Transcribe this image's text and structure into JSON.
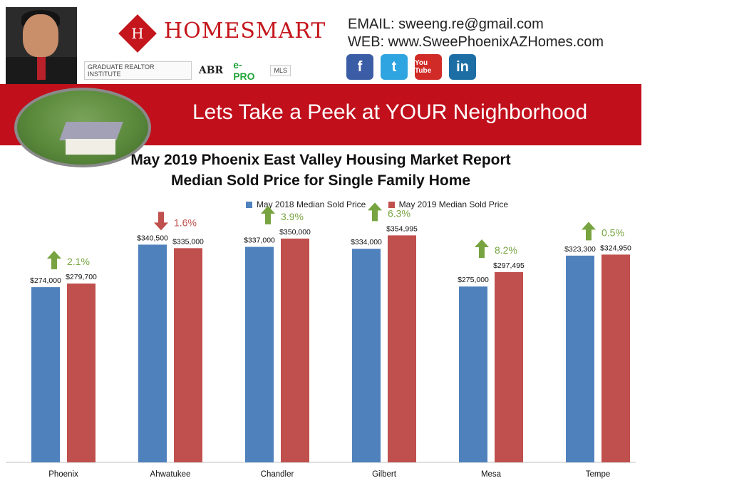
{
  "header": {
    "brand_name": "HOMESMART",
    "brand_glyph": "H",
    "badges": [
      "GRADUATE REALTOR INSTITUTE",
      "ABR",
      "e-PRO",
      "MLS"
    ],
    "email_line": "EMAIL: sweeng.re@gmail.com",
    "web_line": "WEB: www.SweePhoenixAZHomes.com",
    "social": [
      {
        "icon": "facebook-icon",
        "glyph": "f"
      },
      {
        "icon": "twitter-icon",
        "glyph": "t"
      },
      {
        "icon": "youtube-icon",
        "glyph": "You Tube"
      },
      {
        "icon": "linkedin-icon",
        "glyph": "in"
      }
    ]
  },
  "banner": {
    "text": "Lets Take a Peek at YOUR Neighborhood"
  },
  "colors": {
    "banner_red": "#c10f1c",
    "series_2018": "#4f81bd",
    "series_2019": "#c0504d",
    "up_arrow": "#77a440",
    "down_arrow": "#c0504d"
  },
  "chart_data": {
    "type": "bar",
    "title": "May 2019 Phoenix East Valley Housing Market Report",
    "subtitle": "Median Sold Price for Single Family Home",
    "categories": [
      "Phoenix",
      "Ahwatukee",
      "Chandler",
      "Gilbert",
      "Mesa",
      "Tempe"
    ],
    "series": [
      {
        "name": "May 2018 Median Sold Price",
        "values": [
          274000,
          340500,
          337000,
          334000,
          275000,
          323300
        ],
        "labels": [
          "$274,000",
          "$340,500",
          "$337,000",
          "$334,000",
          "$275,000",
          "$323,300"
        ]
      },
      {
        "name": "May 2019 Median Sold Price",
        "values": [
          279700,
          335000,
          350000,
          354995,
          297495,
          324950
        ],
        "labels": [
          "$279,700",
          "$335,000",
          "$350,000",
          "$354,995",
          "$297,495",
          "$324,950"
        ]
      }
    ],
    "changes": [
      {
        "label": "2.1%",
        "direction": "up"
      },
      {
        "label": "1.6%",
        "direction": "down"
      },
      {
        "label": "3.9%",
        "direction": "up"
      },
      {
        "label": "6.3%",
        "direction": "up"
      },
      {
        "label": "8.2%",
        "direction": "up"
      },
      {
        "label": "0.5%",
        "direction": "up"
      }
    ],
    "ylim": [
      0,
      400000
    ],
    "grid": false,
    "legend_position": "top-center"
  }
}
